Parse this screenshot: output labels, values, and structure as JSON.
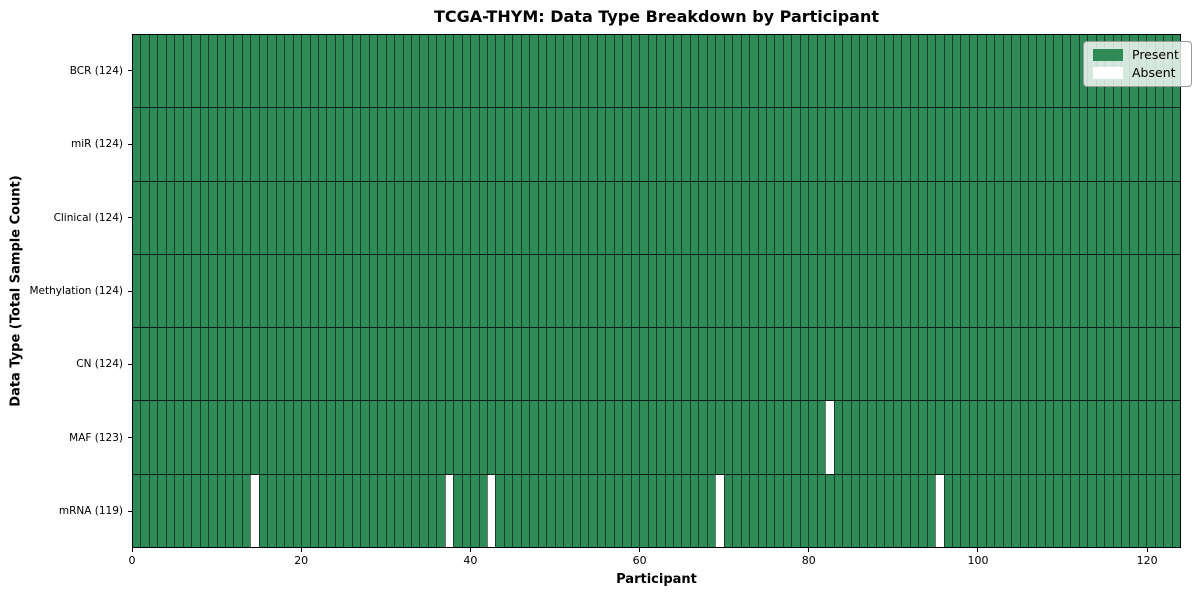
{
  "title": "TCGA-THYM: Data Type Breakdown by Participant",
  "colors": {
    "present": "#2e8b57",
    "absent": "#ffffff",
    "grid_line": "rgba(0,0,0,0.55)",
    "spine": "#000000"
  },
  "chart_data": {
    "type": "heatmap",
    "title": "TCGA-THYM: Data Type Breakdown by Participant",
    "xlabel": "Participant",
    "ylabel": "Data Type (Total Sample Count)",
    "n_participants": 124,
    "xlim": [
      0,
      124
    ],
    "x_ticks": [
      0,
      20,
      40,
      60,
      80,
      100,
      120
    ],
    "grid": true,
    "legend_position": "upper right",
    "legend": [
      {
        "label": "Present",
        "color": "#2e8b57"
      },
      {
        "label": "Absent",
        "color": "#ffffff"
      }
    ],
    "rows": [
      {
        "label": "BCR (124)",
        "data_type": "BCR",
        "total": 124,
        "absent_participants": []
      },
      {
        "label": "miR (124)",
        "data_type": "miR",
        "total": 124,
        "absent_participants": []
      },
      {
        "label": "Clinical (124)",
        "data_type": "Clinical",
        "total": 124,
        "absent_participants": []
      },
      {
        "label": "Methylation (124)",
        "data_type": "Methylation",
        "total": 124,
        "absent_participants": []
      },
      {
        "label": "CN (124)",
        "data_type": "CN",
        "total": 124,
        "absent_participants": []
      },
      {
        "label": "MAF (123)",
        "data_type": "MAF",
        "total": 123,
        "absent_participants": [
          82
        ]
      },
      {
        "label": "mRNA (119)",
        "data_type": "mRNA",
        "total": 119,
        "absent_participants": [
          14,
          37,
          42,
          69,
          95
        ]
      }
    ]
  }
}
